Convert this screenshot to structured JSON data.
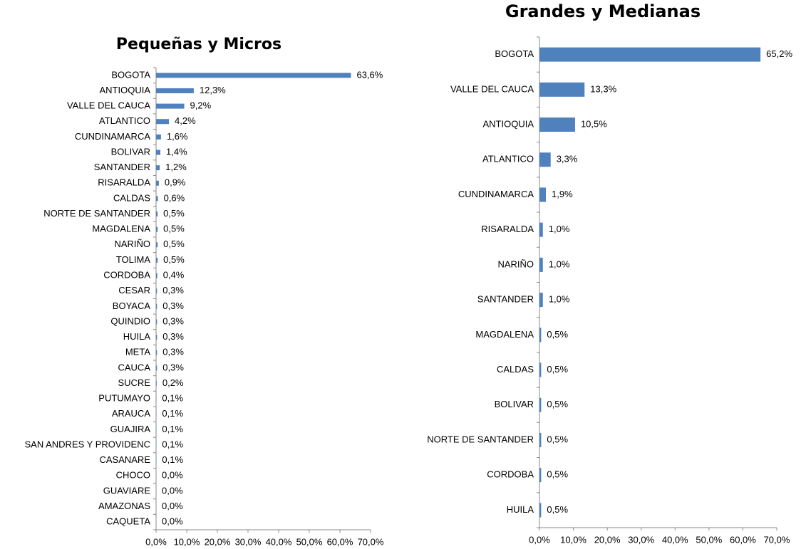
{
  "chart_data": [
    {
      "type": "bar",
      "orientation": "horizontal",
      "title": "Pequeñas y Micros",
      "color": "#4f81bd",
      "categories": [
        "BOGOTA",
        "ANTIOQUIA",
        "VALLE DEL CAUCA",
        "ATLANTICO",
        "CUNDINAMARCA",
        "BOLIVAR",
        "SANTANDER",
        "RISARALDA",
        "CALDAS",
        "NORTE DE SANTANDER",
        "MAGDALENA",
        "NARIÑO",
        "TOLIMA",
        "CORDOBA",
        "CESAR",
        "BOYACA",
        "QUINDIO",
        "HUILA",
        "META",
        "CAUCA",
        "SUCRE",
        "PUTUMAYO",
        "ARAUCA",
        "GUAJIRA",
        "SAN ANDRES Y PROVIDENC",
        "CASANARE",
        "CHOCO",
        "GUAVIARE",
        "AMAZONAS",
        "CAQUETA"
      ],
      "values": [
        63.6,
        12.3,
        9.2,
        4.2,
        1.6,
        1.4,
        1.2,
        0.9,
        0.6,
        0.5,
        0.5,
        0.5,
        0.5,
        0.4,
        0.3,
        0.3,
        0.3,
        0.3,
        0.3,
        0.3,
        0.2,
        0.1,
        0.1,
        0.1,
        0.1,
        0.1,
        0.0,
        0.0,
        0.0,
        0.0
      ],
      "value_labels": [
        "63,6%",
        "12,3%",
        "9,2%",
        "4,2%",
        "1,6%",
        "1,4%",
        "1,2%",
        "0,9%",
        "0,6%",
        "0,5%",
        "0,5%",
        "0,5%",
        "0,5%",
        "0,4%",
        "0,3%",
        "0,3%",
        "0,3%",
        "0,3%",
        "0,3%",
        "0,3%",
        "0,2%",
        "0,1%",
        "0,1%",
        "0,1%",
        "0,1%",
        "0,1%",
        "0,0%",
        "0,0%",
        "0,0%",
        "0,0%"
      ],
      "xlim": [
        0,
        70
      ],
      "xticks": [
        {
          "value": 0,
          "label": "0,0%"
        },
        {
          "value": 10,
          "label": "10,0%"
        },
        {
          "value": 20,
          "label": "20,0%"
        },
        {
          "value": 30,
          "label": "30,0%"
        },
        {
          "value": 40,
          "label": "40,0%"
        },
        {
          "value": 50,
          "label": "50,0%"
        },
        {
          "value": 60,
          "label": "60,0%"
        },
        {
          "value": 70,
          "label": "70,0%"
        }
      ]
    },
    {
      "type": "bar",
      "orientation": "horizontal",
      "title": "Grandes y Medianas",
      "color": "#4f81bd",
      "categories": [
        "BOGOTA",
        "VALLE DEL CAUCA",
        "ANTIOQUIA",
        "ATLANTICO",
        "CUNDINAMARCA",
        "RISARALDA",
        "NARIÑO",
        "SANTANDER",
        "MAGDALENA",
        "CALDAS",
        "BOLIVAR",
        "NORTE DE SANTANDER",
        "CORDOBA",
        "HUILA"
      ],
      "values": [
        65.2,
        13.3,
        10.5,
        3.3,
        1.9,
        1.0,
        1.0,
        1.0,
        0.5,
        0.5,
        0.5,
        0.5,
        0.5,
        0.5
      ],
      "value_labels": [
        "65,2%",
        "13,3%",
        "10,5%",
        "3,3%",
        "1,9%",
        "1,0%",
        "1,0%",
        "1,0%",
        "0,5%",
        "0,5%",
        "0,5%",
        "0,5%",
        "0,5%",
        "0,5%"
      ],
      "xlim": [
        0,
        70
      ],
      "xticks": [
        {
          "value": 0,
          "label": "0,0%"
        },
        {
          "value": 10,
          "label": "10,0%"
        },
        {
          "value": 20,
          "label": "20,0%"
        },
        {
          "value": 30,
          "label": "30,0%"
        },
        {
          "value": 40,
          "label": "40,0%"
        },
        {
          "value": 50,
          "label": "50,0%"
        },
        {
          "value": 60,
          "label": "60,0%"
        },
        {
          "value": 70,
          "label": "70,0%"
        }
      ]
    }
  ]
}
